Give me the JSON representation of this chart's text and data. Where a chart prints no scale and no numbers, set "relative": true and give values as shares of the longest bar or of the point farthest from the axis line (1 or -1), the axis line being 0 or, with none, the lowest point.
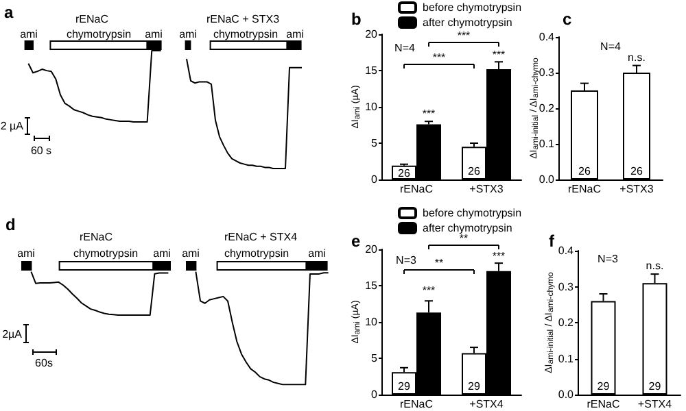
{
  "chart_data": [
    {
      "type": "line",
      "title": "a",
      "relative": true,
      "categories": [
        null,
        null,
        null,
        null,
        null,
        null,
        null,
        null,
        null,
        null,
        null,
        null,
        null,
        null,
        null,
        null,
        null,
        null,
        null,
        null,
        null,
        null,
        null,
        null,
        null,
        null,
        null,
        null,
        null,
        null
      ],
      "series": [
        {
          "name": "rENaC",
          "color": "#000000",
          "values": [
            0.82,
            0.69,
            0.71,
            0.74,
            0.72,
            0.71,
            0.6,
            0.38,
            0.26,
            0.22,
            0.17,
            0.15,
            0.13,
            0.1,
            0.08,
            0.07,
            0.06,
            0.04,
            0.03,
            0.02,
            0.01,
            0.01,
            0.01,
            0,
            0,
            0,
            0,
            1,
            1,
            1
          ]
        }
      ],
      "annotations": [
        "ami",
        "chymotrypsin",
        "ami",
        "2 µA",
        "60 s"
      ]
    },
    {
      "type": "line",
      "relative": true,
      "categories": [
        null,
        null,
        null,
        null,
        null,
        null,
        null,
        null,
        null,
        null,
        null,
        null,
        null,
        null,
        null,
        null,
        null,
        null,
        null,
        null,
        null,
        null,
        null,
        null,
        null,
        null,
        null,
        null,
        null
      ],
      "series": [
        {
          "name": "rENaC + STX3",
          "color": "#000000",
          "values": [
            1.0,
            0.8,
            0.78,
            0.79,
            0.79,
            0.79,
            0.77,
            0.44,
            0.29,
            0.21,
            0.14,
            0.09,
            0.07,
            0.05,
            0.04,
            0.03,
            0.03,
            0.02,
            0.02,
            0.01,
            0.01,
            0,
            0,
            0,
            0,
            0.92,
            0.92,
            0.92,
            0.92
          ]
        }
      ],
      "annotations": [
        "ami",
        "chymotrypsin",
        "ami"
      ]
    },
    {
      "type": "bar",
      "title": "b",
      "ylabel": "ΔI$_{ami}$ (µA)",
      "categories": [
        "rENaC",
        "+STX3"
      ],
      "ylim": [
        0,
        20
      ],
      "yticks": [
        0,
        5,
        10,
        15,
        20
      ],
      "legend": "top",
      "series": [
        {
          "name": "before chymotrypsin",
          "color": "#ffffff",
          "values": [
            1.9,
            4.5
          ],
          "errors": [
            [
              1.9,
              2.1
            ],
            [
              4.5,
              5.0
            ]
          ]
        },
        {
          "name": "after chymotrypsin",
          "color": "#000000",
          "values": [
            7.6,
            15.2
          ],
          "errors": [
            [
              7.6,
              8.0
            ],
            [
              15.2,
              16.2
            ]
          ]
        }
      ],
      "annotations": [
        "N=4",
        "***",
        "***",
        "***",
        "***",
        "26",
        "26"
      ]
    },
    {
      "type": "bar",
      "title": "c",
      "ylabel": "ΔI$_{ami-initial}$ / ΔI$_{ami-chymo}$",
      "categories": [
        "rENaC",
        "+STX3"
      ],
      "ylim": [
        0,
        0.4
      ],
      "yticks": [
        {
          "value": 0,
          "label": "0.0"
        },
        0.1,
        0.2,
        0.3,
        0.4
      ],
      "series": [
        {
          "color": "#ffffff",
          "values": [
            0.25,
            0.3
          ],
          "errors": [
            [
              0.25,
              0.27
            ],
            [
              0.3,
              0.32
            ]
          ]
        }
      ],
      "annotations": [
        "N=4",
        "n.s.",
        "26",
        "26"
      ]
    },
    {
      "type": "line",
      "title": "d",
      "relative": true,
      "categories": [
        null,
        null,
        null,
        null,
        null,
        null,
        null,
        null,
        null,
        null,
        null,
        null,
        null,
        null,
        null,
        null,
        null,
        null,
        null,
        null,
        null,
        null,
        null,
        null,
        null,
        null,
        null,
        null,
        null,
        null,
        null
      ],
      "series": [
        {
          "name": "rENaC",
          "color": "#000000",
          "values": [
            1.0,
            0.73,
            0.74,
            0.74,
            0.74,
            0.75,
            0.76,
            0.69,
            0.6,
            0.49,
            0.39,
            0.28,
            0.21,
            0.14,
            0.11,
            0.07,
            0.04,
            0.02,
            0.01,
            0,
            0,
            0,
            0,
            0,
            0,
            0,
            0,
            0.95,
            0.97,
            0.97,
            0.97
          ]
        }
      ],
      "annotations": [
        "ami",
        "chymotrypsin",
        "ami",
        "2µA",
        "60s"
      ]
    },
    {
      "type": "line",
      "relative": true,
      "categories": [
        null,
        null,
        null,
        null,
        null,
        null,
        null,
        null,
        null,
        null,
        null,
        null,
        null,
        null,
        null,
        null,
        null,
        null,
        null,
        null,
        null,
        null,
        null,
        null,
        null,
        null,
        null,
        null,
        null,
        null
      ],
      "series": [
        {
          "name": "rENaC + STX4",
          "color": "#000000",
          "values": [
            1.0,
            0.74,
            0.72,
            0.75,
            0.76,
            0.77,
            0.78,
            0.74,
            0.55,
            0.38,
            0.27,
            0.2,
            0.14,
            0.11,
            0.07,
            0.05,
            0.04,
            0.02,
            0.01,
            0,
            0,
            0,
            0,
            0,
            0,
            0.98,
            0.98,
            0.98,
            0.99,
            0.99
          ]
        }
      ],
      "annotations": [
        "ami",
        "chymotrypsin",
        "ami"
      ]
    },
    {
      "type": "bar",
      "title": "e",
      "ylabel": "ΔI$_{ami}$ (µA)",
      "categories": [
        "rENaC",
        "+STX4"
      ],
      "ylim": [
        0,
        20
      ],
      "yticks": [
        0,
        5,
        10,
        15,
        20
      ],
      "legend": "top",
      "series": [
        {
          "name": "before chymotrypsin",
          "color": "#ffffff",
          "values": [
            3.1,
            5.7
          ],
          "errors": [
            [
              3.1,
              3.7
            ],
            [
              5.7,
              6.5
            ]
          ]
        },
        {
          "name": "after chymotrypsin",
          "color": "#000000",
          "values": [
            11.3,
            17.0
          ],
          "errors": [
            [
              11.3,
              12.9
            ],
            [
              17.0,
              18.1
            ]
          ]
        }
      ],
      "annotations": [
        "N=3",
        "**",
        "**",
        "***",
        "***",
        "29",
        "29"
      ]
    },
    {
      "type": "bar",
      "title": "f",
      "ylabel": "ΔI$_{ami-initial}$ / ΔI$_{ami-chymo}$",
      "categories": [
        "rENaC",
        "+STX4"
      ],
      "ylim": [
        0,
        0.4
      ],
      "yticks": [
        {
          "value": 0,
          "label": "0.0"
        },
        0.1,
        0.2,
        0.3,
        0.4
      ],
      "series": [
        {
          "color": "#ffffff",
          "values": [
            0.26,
            0.31
          ],
          "errors": [
            [
              0.26,
              0.28
            ],
            [
              0.31,
              0.335
            ]
          ]
        }
      ],
      "annotations": [
        "N=3",
        "n.s.",
        "29",
        "29"
      ]
    }
  ]
}
